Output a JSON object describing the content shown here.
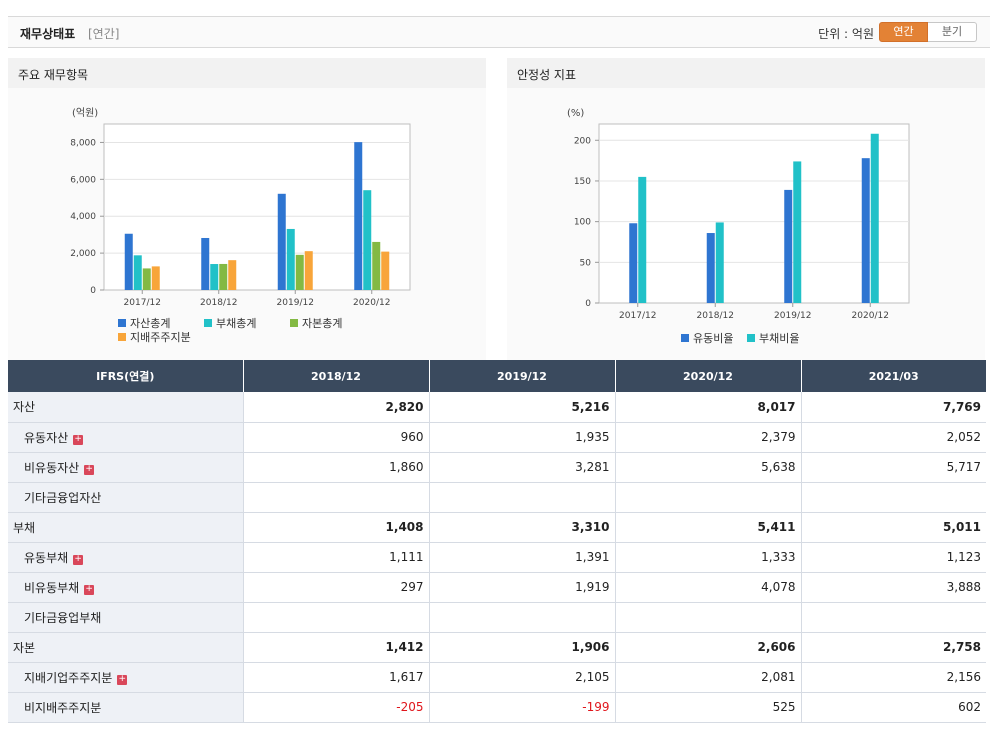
{
  "header": {
    "title": "재무상태표",
    "subtitle": "[연간]",
    "unit_label": "단위 : 억원",
    "toggle": {
      "annual": "연간",
      "quarterly": "분기"
    }
  },
  "panels": {
    "left_title": "주요 재무항목",
    "right_title": "안정성 지표"
  },
  "chart_data": [
    {
      "type": "bar",
      "title": "주요 재무항목",
      "ylabel": "(억원)",
      "ylim": [
        0,
        9000
      ],
      "yticks": [
        0,
        2000,
        4000,
        6000,
        8000
      ],
      "ytick_labels": [
        "0",
        "2,000",
        "4,000",
        "6,000",
        "8,000"
      ],
      "categories": [
        "2017/12",
        "2018/12",
        "2019/12",
        "2020/12"
      ],
      "series": [
        {
          "name": "자산총계",
          "color": "#2e75d1",
          "values": [
            3050,
            2820,
            5216,
            8017
          ]
        },
        {
          "name": "부채총계",
          "color": "#21c1c8",
          "values": [
            1880,
            1408,
            3310,
            5411
          ]
        },
        {
          "name": "자본총계",
          "color": "#83b943",
          "values": [
            1170,
            1412,
            1906,
            2606
          ]
        },
        {
          "name": "지배주주지분",
          "color": "#f8a53a",
          "values": [
            1280,
            1617,
            2105,
            2081
          ]
        }
      ],
      "legend": "bottom-left"
    },
    {
      "type": "bar",
      "title": "안정성 지표",
      "ylabel": "(%)",
      "ylim": [
        0,
        220
      ],
      "yticks": [
        0,
        50,
        100,
        150,
        200
      ],
      "ytick_labels": [
        "0",
        "50",
        "100",
        "150",
        "200"
      ],
      "categories": [
        "2017/12",
        "2018/12",
        "2019/12",
        "2020/12"
      ],
      "series": [
        {
          "name": "유동비율",
          "color": "#2e75d1",
          "values": [
            98,
            86,
            139,
            178
          ]
        },
        {
          "name": "부채비율",
          "color": "#21c1c8",
          "values": [
            155,
            99,
            174,
            208
          ]
        }
      ],
      "legend": "bottom-center"
    }
  ],
  "table": {
    "corner": "IFRS(연결)",
    "columns": [
      "2018/12",
      "2019/12",
      "2020/12",
      "2021/03"
    ],
    "rows": [
      {
        "label": "자산",
        "major": true,
        "expand": false,
        "values": [
          "2,820",
          "5,216",
          "8,017",
          "7,769"
        ]
      },
      {
        "label": "유동자산",
        "major": false,
        "expand": true,
        "values": [
          "960",
          "1,935",
          "2,379",
          "2,052"
        ]
      },
      {
        "label": "비유동자산",
        "major": false,
        "expand": true,
        "values": [
          "1,860",
          "3,281",
          "5,638",
          "5,717"
        ]
      },
      {
        "label": "기타금융업자산",
        "major": false,
        "expand": false,
        "values": [
          "",
          "",
          "",
          ""
        ]
      },
      {
        "label": "부채",
        "major": true,
        "expand": false,
        "values": [
          "1,408",
          "3,310",
          "5,411",
          "5,011"
        ]
      },
      {
        "label": "유동부채",
        "major": false,
        "expand": true,
        "values": [
          "1,111",
          "1,391",
          "1,333",
          "1,123"
        ]
      },
      {
        "label": "비유동부채",
        "major": false,
        "expand": true,
        "values": [
          "297",
          "1,919",
          "4,078",
          "3,888"
        ]
      },
      {
        "label": "기타금융업부채",
        "major": false,
        "expand": false,
        "values": [
          "",
          "",
          "",
          ""
        ]
      },
      {
        "label": "자본",
        "major": true,
        "expand": false,
        "values": [
          "1,412",
          "1,906",
          "2,606",
          "2,758"
        ]
      },
      {
        "label": "지배기업주주지분",
        "major": false,
        "expand": true,
        "values": [
          "1,617",
          "2,105",
          "2,081",
          "2,156"
        ]
      },
      {
        "label": "비지배주주지분",
        "major": false,
        "expand": false,
        "values": [
          "-205",
          "-199",
          "525",
          "602"
        ]
      }
    ],
    "expand_symbol": "+",
    "negative_color": "#e0161c"
  }
}
